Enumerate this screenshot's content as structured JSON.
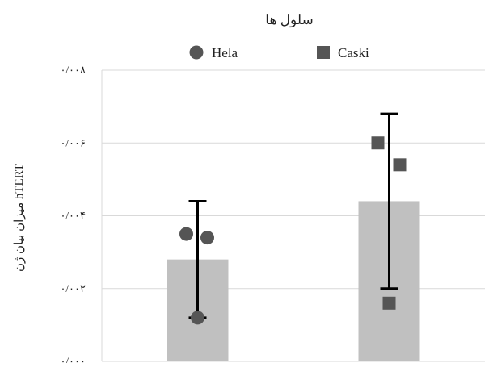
{
  "colors": {
    "bar": "#c0c0c0",
    "point": "#555555",
    "errorbar": "#000000",
    "grid": "#d9d9d9",
    "text": "#222222"
  },
  "chart_data": {
    "type": "bar",
    "title": "سلول ها",
    "xlabel": "",
    "ylabel": "میزان بیان ژن hTERT",
    "ylim": [
      0,
      0.008
    ],
    "yticks": [
      0,
      0.002,
      0.004,
      0.006,
      0.008
    ],
    "ytick_labels": [
      "۰/۰۰۰",
      "۰/۰۰۲",
      "۰/۰۰۴",
      "۰/۰۰۶",
      "۰/۰۰۸"
    ],
    "grid": true,
    "legend_position": "top",
    "categories": [
      "Hela",
      "Caski"
    ],
    "values": [
      0.0028,
      0.0044
    ],
    "error": [
      0.0016,
      0.0024
    ],
    "series": [
      {
        "name": "Hela",
        "marker": "circle",
        "points": [
          0.0035,
          0.0034,
          0.0012
        ]
      },
      {
        "name": "Caski",
        "marker": "square",
        "points": [
          0.006,
          0.0054,
          0.0016
        ]
      }
    ]
  }
}
